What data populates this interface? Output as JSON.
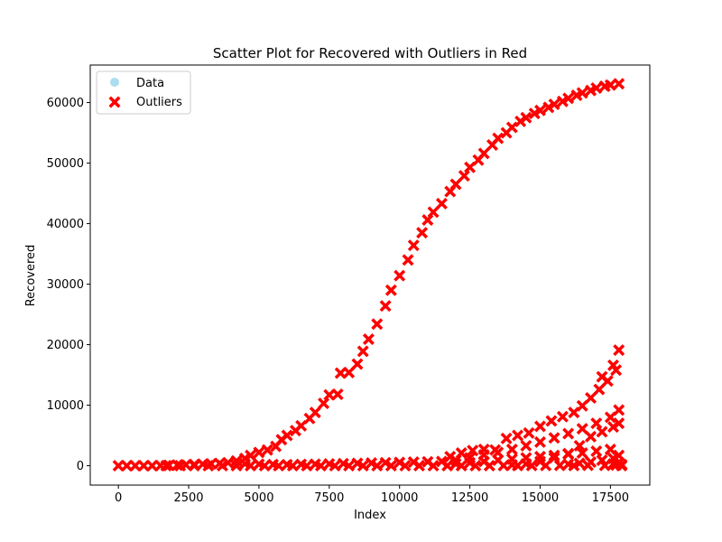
{
  "chart_data": {
    "type": "scatter",
    "title": "Scatter Plot for Recovered with Outliers in Red",
    "xlabel": "Index",
    "ylabel": "Recovered",
    "xlim": [
      -1000,
      18900
    ],
    "ylim": [
      -3200,
      66200
    ],
    "xticks": [
      0,
      2500,
      5000,
      7500,
      10000,
      12500,
      15000,
      17500
    ],
    "yticks": [
      0,
      10000,
      20000,
      30000,
      40000,
      50000,
      60000
    ],
    "grid": false,
    "legend": {
      "placement": "top-left",
      "entries": [
        {
          "label": "Data",
          "marker": "circle",
          "color": "#87ceeb"
        },
        {
          "label": "Outliers",
          "marker": "x",
          "color": "#ff0000"
        }
      ]
    },
    "series": [
      {
        "name": "Outliers",
        "color": "#ff0000",
        "marker": "X",
        "points": [
          [
            0,
            0
          ],
          [
            300,
            0
          ],
          [
            600,
            0
          ],
          [
            900,
            0
          ],
          [
            1200,
            0
          ],
          [
            1500,
            20
          ],
          [
            1800,
            60
          ],
          [
            2100,
            100
          ],
          [
            2400,
            150
          ],
          [
            2700,
            200
          ],
          [
            3000,
            250
          ],
          [
            3300,
            300
          ],
          [
            3600,
            380
          ],
          [
            3900,
            500
          ],
          [
            4200,
            800
          ],
          [
            4500,
            1200
          ],
          [
            4700,
            1700
          ],
          [
            5000,
            2200
          ],
          [
            5300,
            2600
          ],
          [
            5600,
            3200
          ],
          [
            5800,
            4300
          ],
          [
            6000,
            5000
          ],
          [
            6300,
            5800
          ],
          [
            6500,
            6600
          ],
          [
            6800,
            7800
          ],
          [
            7000,
            8800
          ],
          [
            7300,
            10300
          ],
          [
            7500,
            11700
          ],
          [
            7800,
            11800
          ],
          [
            7900,
            15300
          ],
          [
            8200,
            15400
          ],
          [
            8500,
            16800
          ],
          [
            8700,
            18900
          ],
          [
            8900,
            20900
          ],
          [
            9200,
            23400
          ],
          [
            9500,
            26400
          ],
          [
            9700,
            29000
          ],
          [
            10000,
            31400
          ],
          [
            10300,
            34000
          ],
          [
            10500,
            36400
          ],
          [
            10800,
            38500
          ],
          [
            11000,
            40600
          ],
          [
            11200,
            41900
          ],
          [
            11500,
            43300
          ],
          [
            11800,
            45300
          ],
          [
            12000,
            46500
          ],
          [
            12300,
            47900
          ],
          [
            12500,
            49300
          ],
          [
            12800,
            50500
          ],
          [
            13000,
            51600
          ],
          [
            13300,
            53000
          ],
          [
            13500,
            54100
          ],
          [
            13800,
            55000
          ],
          [
            14000,
            55900
          ],
          [
            14300,
            56900
          ],
          [
            14500,
            57500
          ],
          [
            14800,
            58200
          ],
          [
            15000,
            58700
          ],
          [
            15300,
            59200
          ],
          [
            15500,
            59700
          ],
          [
            15800,
            60200
          ],
          [
            16000,
            60700
          ],
          [
            16300,
            61200
          ],
          [
            16500,
            61600
          ],
          [
            16800,
            62000
          ],
          [
            17000,
            62400
          ],
          [
            17300,
            62700
          ],
          [
            17500,
            62900
          ],
          [
            17800,
            63100
          ],
          [
            4500,
            300
          ],
          [
            5000,
            250
          ],
          [
            5500,
            200
          ],
          [
            6000,
            180
          ],
          [
            6500,
            220
          ],
          [
            7000,
            260
          ],
          [
            7500,
            300
          ],
          [
            8000,
            350
          ],
          [
            8500,
            400
          ],
          [
            9000,
            450
          ],
          [
            9500,
            500
          ],
          [
            10000,
            550
          ],
          [
            10500,
            600
          ],
          [
            11000,
            650
          ],
          [
            11500,
            700
          ],
          [
            12000,
            900
          ],
          [
            12500,
            1300
          ],
          [
            13000,
            1800
          ],
          [
            13500,
            2200
          ],
          [
            14000,
            2700
          ],
          [
            14500,
            3300
          ],
          [
            15000,
            3900
          ],
          [
            15500,
            4600
          ],
          [
            16000,
            5300
          ],
          [
            16500,
            6100
          ],
          [
            17000,
            7000
          ],
          [
            17500,
            8000
          ],
          [
            17800,
            9200
          ],
          [
            11800,
            1500
          ],
          [
            12200,
            2100
          ],
          [
            12600,
            2500
          ],
          [
            13000,
            2700
          ],
          [
            13400,
            2600
          ],
          [
            13800,
            4500
          ],
          [
            14200,
            5000
          ],
          [
            14600,
            5400
          ],
          [
            15000,
            6500
          ],
          [
            15400,
            7400
          ],
          [
            15800,
            8100
          ],
          [
            16200,
            8800
          ],
          [
            16500,
            9900
          ],
          [
            16800,
            11200
          ],
          [
            17100,
            12600
          ],
          [
            17400,
            14000
          ],
          [
            17700,
            15800
          ],
          [
            17800,
            19100
          ],
          [
            17600,
            16600
          ],
          [
            17200,
            14700
          ],
          [
            16000,
            2000
          ],
          [
            16400,
            3300
          ],
          [
            16800,
            4800
          ],
          [
            17200,
            5600
          ],
          [
            17600,
            6400
          ],
          [
            17800,
            7000
          ],
          [
            15500,
            1300
          ],
          [
            15000,
            700
          ],
          [
            14500,
            300
          ],
          [
            14000,
            150
          ],
          [
            12000,
            300
          ],
          [
            12500,
            500
          ],
          [
            13000,
            700
          ],
          [
            13500,
            900
          ],
          [
            14000,
            1100
          ],
          [
            14500,
            1300
          ],
          [
            15000,
            1500
          ],
          [
            15500,
            1700
          ],
          [
            16000,
            1900
          ],
          [
            16500,
            2100
          ],
          [
            17000,
            2400
          ],
          [
            17500,
            2700
          ],
          [
            17800,
            1700
          ],
          [
            17600,
            1200
          ],
          [
            17200,
            900
          ],
          [
            16800,
            600
          ],
          [
            16400,
            400
          ],
          [
            16000,
            250
          ],
          [
            17800,
            500
          ],
          [
            17600,
            300
          ],
          [
            17900,
            0
          ],
          [
            17900,
            200
          ],
          [
            17700,
            100
          ],
          [
            17300,
            50
          ],
          [
            16700,
            60
          ],
          [
            16200,
            30
          ],
          [
            15700,
            50
          ],
          [
            15200,
            40
          ],
          [
            14700,
            30
          ],
          [
            14200,
            20
          ],
          [
            13700,
            20
          ],
          [
            13200,
            10
          ],
          [
            12700,
            10
          ],
          [
            12200,
            5
          ],
          [
            11700,
            5
          ],
          [
            11200,
            0
          ],
          [
            10700,
            0
          ],
          [
            10200,
            0
          ],
          [
            9700,
            0
          ],
          [
            9200,
            0
          ],
          [
            8700,
            0
          ],
          [
            8200,
            0
          ],
          [
            7700,
            0
          ],
          [
            7200,
            0
          ],
          [
            6700,
            0
          ],
          [
            6200,
            0
          ],
          [
            5700,
            0
          ],
          [
            5200,
            0
          ],
          [
            4700,
            0
          ],
          [
            4200,
            0
          ],
          [
            3700,
            0
          ],
          [
            3200,
            0
          ],
          [
            2700,
            0
          ],
          [
            2200,
            0
          ],
          [
            1700,
            0
          ]
        ]
      }
    ]
  }
}
